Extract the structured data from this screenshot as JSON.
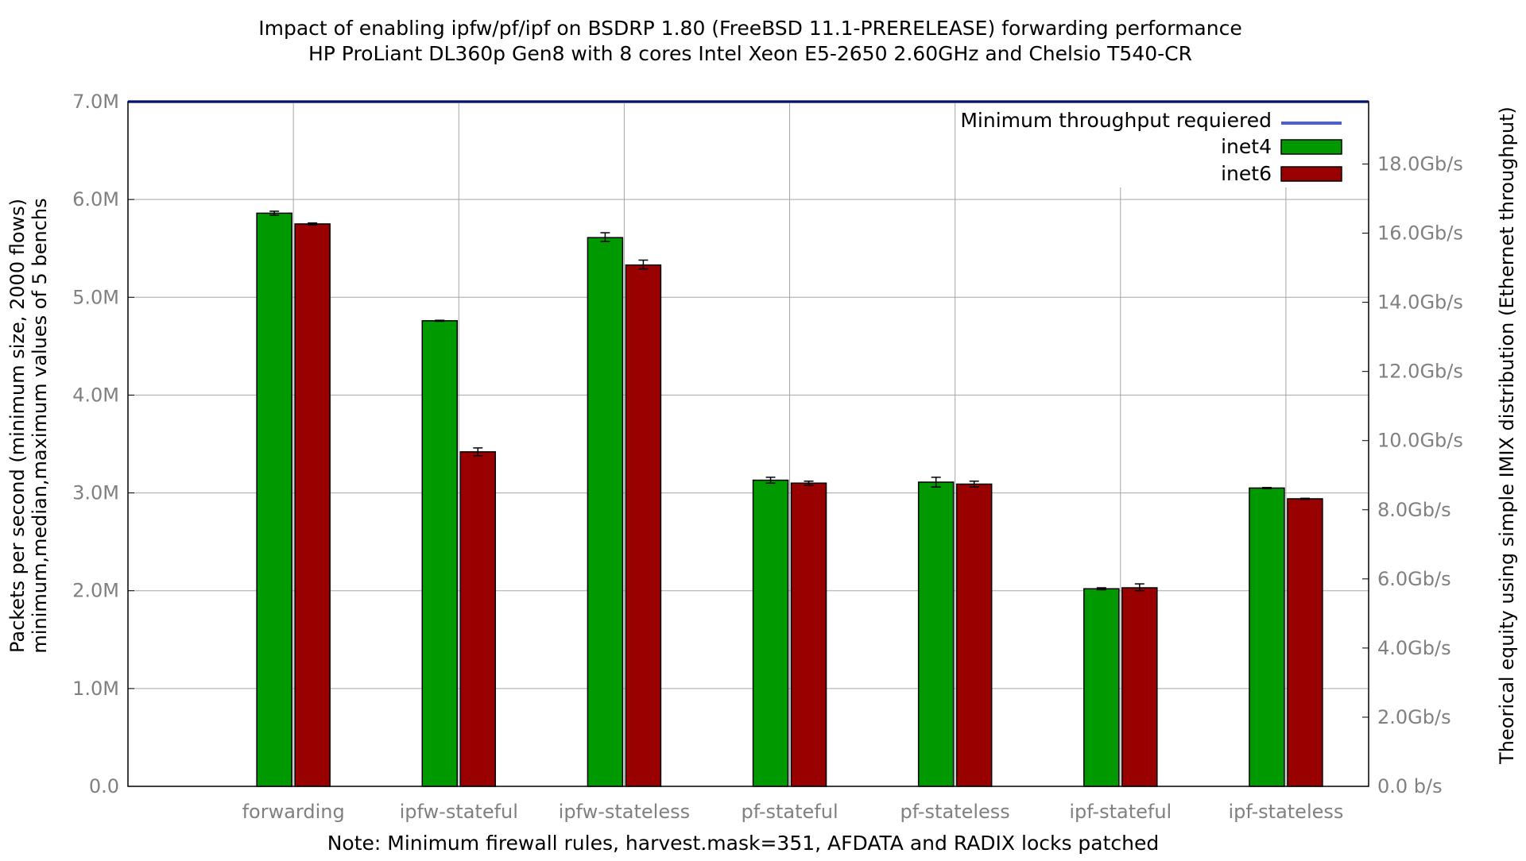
{
  "chart_data": {
    "type": "bar",
    "title": "Impact of enabling ipfw/pf/ipf on BSDRP 1.80 (FreeBSD 11.1-PRERELEASE) forwarding performance",
    "subtitle": "HP ProLiant DL360p Gen8 with 8 cores Intel Xeon E5-2650 2.60GHz and Chelsio T540-CR",
    "note": "Note: Minimum firewall rules, harvest.mask=351, AFDATA and RADIX locks patched",
    "ylabel_line1": "Packets per second (minimum size, 2000 flows)",
    "ylabel_line2": "minimum,median,maximum values of 5 benchs",
    "y2label": "Theorical equity using simple IMIX distribution (Ethernet throughput)",
    "categories": [
      "forwarding",
      "ipfw-stateful",
      "ipfw-stateless",
      "pf-stateful",
      "pf-stateless",
      "ipf-stateful",
      "ipf-stateless"
    ],
    "ylim": [
      0,
      7000000
    ],
    "yticks": [
      0,
      1000000,
      2000000,
      3000000,
      4000000,
      5000000,
      6000000,
      7000000
    ],
    "ytick_labels": [
      "0.0",
      "1.0M",
      "2.0M",
      "3.0M",
      "4.0M",
      "5.0M",
      "6.0M",
      "7.0M"
    ],
    "y2ticks_gbps": [
      0,
      2,
      4,
      6,
      8,
      10,
      12,
      14,
      16,
      18
    ],
    "y2tick_labels": [
      "0.0 b/s",
      "2.0Gb/s",
      "4.0Gb/s",
      "6.0Gb/s",
      "8.0Gb/s",
      "10.0Gb/s",
      "12.0Gb/s",
      "14.0Gb/s",
      "16.0Gb/s",
      "18.0Gb/s"
    ],
    "y2_gbps_per_mpps": 2.829,
    "grid": true,
    "legend_position": "top-right",
    "series": [
      {
        "name": "inet4",
        "color": "#009900",
        "values": [
          5860000,
          4760000,
          5610000,
          3130000,
          3110000,
          2020000,
          3050000
        ],
        "min": [
          5840000,
          4755000,
          5570000,
          3100000,
          3060000,
          2010000,
          3045000
        ],
        "max": [
          5880000,
          4765000,
          5660000,
          3160000,
          3160000,
          2030000,
          3055000
        ]
      },
      {
        "name": "inet6",
        "color": "#990000",
        "values": [
          5750000,
          3420000,
          5330000,
          3100000,
          3090000,
          2030000,
          2940000
        ],
        "min": [
          5740000,
          3380000,
          5290000,
          3080000,
          3060000,
          2000000,
          2935000
        ],
        "max": [
          5760000,
          3460000,
          5380000,
          3120000,
          3120000,
          2070000,
          2945000
        ]
      }
    ],
    "reference_line": {
      "name": "Minimum throughput requiered",
      "value": 7000000,
      "color": "#4d5fd6"
    }
  }
}
